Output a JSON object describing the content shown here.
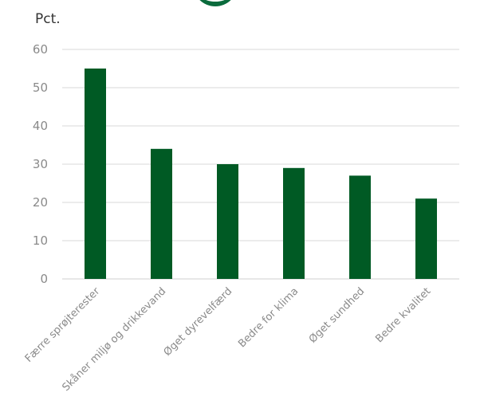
{
  "chart_data": {
    "type": "bar",
    "ylabel": "Pct.",
    "ylim": [
      0,
      60
    ],
    "yticks": [
      0,
      10,
      20,
      30,
      40,
      50,
      60
    ],
    "grid": true,
    "categories": [
      "Færre sprøjterester",
      "Skåner miljø og drikkevand",
      "Øget dyrevelfærd",
      "Bedre for klima",
      "Øget sundhed",
      "Bedre kvalitet"
    ],
    "values": [
      55,
      34,
      30,
      29,
      27,
      21
    ],
    "bar_color": "#005a24"
  }
}
